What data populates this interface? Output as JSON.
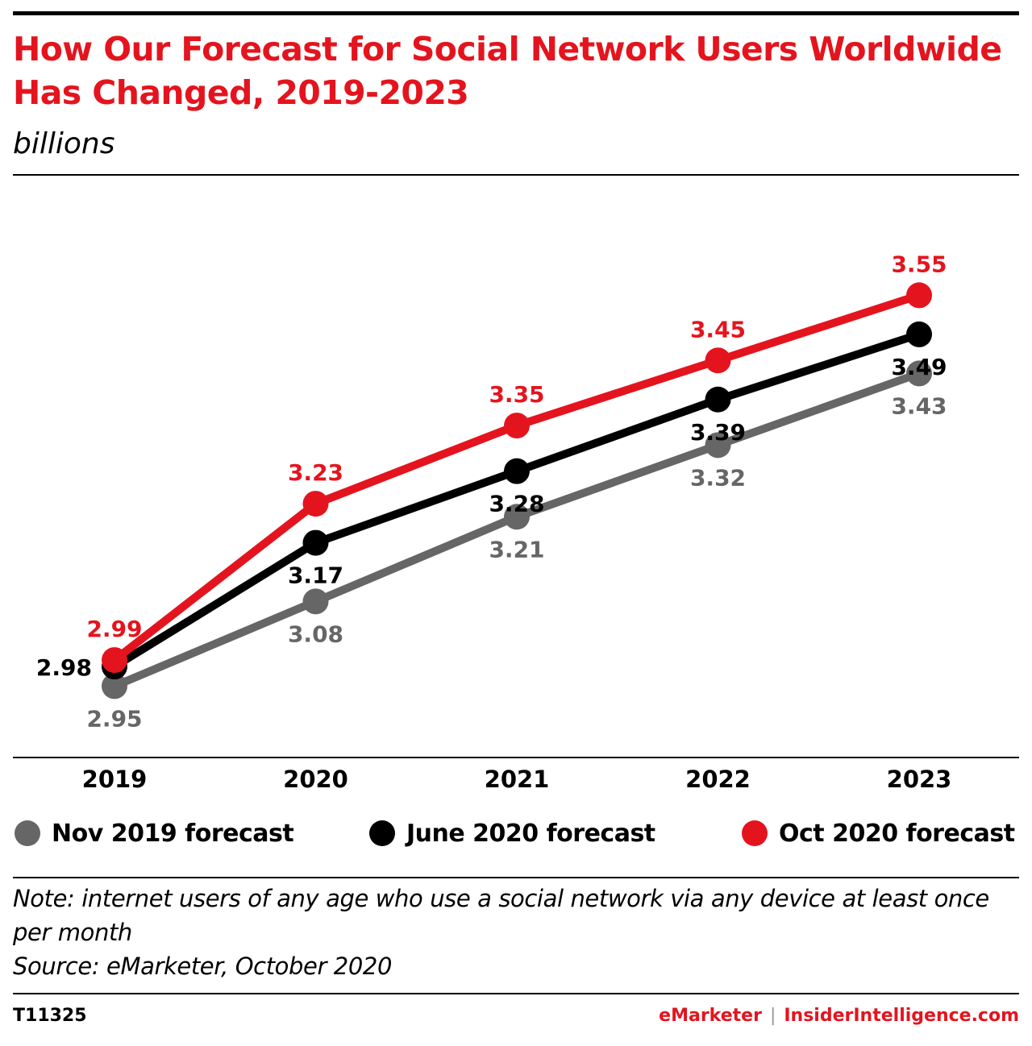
{
  "header": {
    "title": "How Our Forecast for Social Network Users Worldwide Has Changed, 2019-2023",
    "subtitle": "billions"
  },
  "chart_data": {
    "type": "line",
    "title": "How Our Forecast for Social Network Users Worldwide Has Changed, 2019-2023",
    "subtitle": "billions",
    "categories": [
      "2019",
      "2020",
      "2021",
      "2022",
      "2023"
    ],
    "ylim": [
      2.88,
      3.6
    ],
    "grid": false,
    "legend_position": "bottom",
    "series": [
      {
        "name": "Nov 2019 forecast",
        "color": "#666666",
        "values": [
          2.95,
          3.08,
          3.21,
          3.32,
          3.43
        ],
        "label_position": "below"
      },
      {
        "name": "June 2020 forecast",
        "color": "#000000",
        "values": [
          2.98,
          3.17,
          3.28,
          3.39,
          3.49
        ],
        "label_position": "below"
      },
      {
        "name": "Oct 2020 forecast",
        "color": "#e4141e",
        "values": [
          2.99,
          3.23,
          3.35,
          3.45,
          3.55
        ],
        "label_position": "above"
      }
    ],
    "value_labels": [
      "2.98"
    ]
  },
  "footer": {
    "note": "Note: internet users of any age who use a social network via any device at least once per month",
    "source": "Source: eMarketer, October 2020",
    "chart_id": "T11325",
    "brand_primary": "eMarketer",
    "brand_separator": "|",
    "brand_secondary": "InsiderIntelligence.com"
  }
}
